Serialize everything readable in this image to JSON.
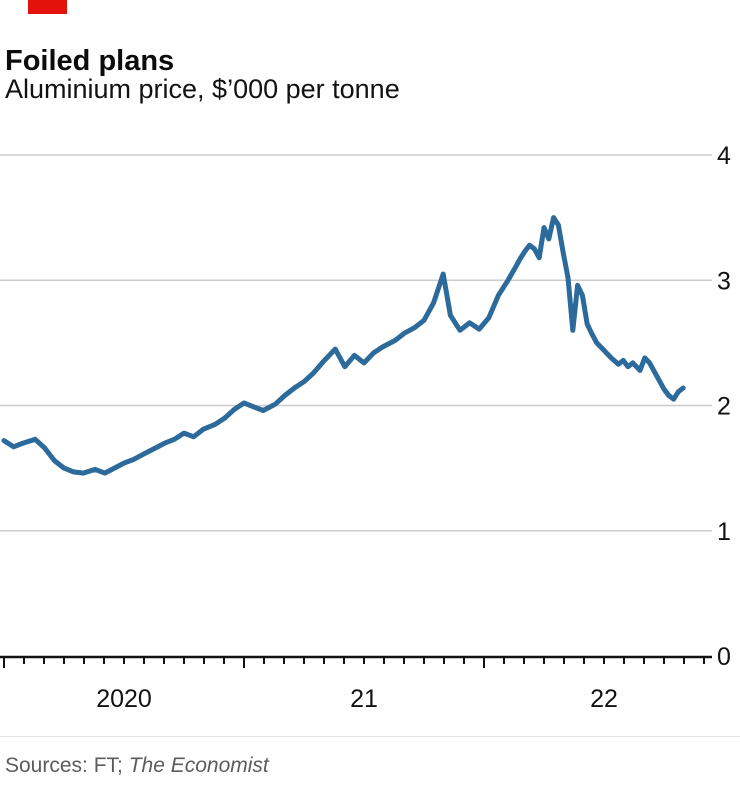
{
  "brand": {
    "red_tag_color": "#E3120B"
  },
  "header": {
    "title": "Foiled plans",
    "subtitle": "Aluminium price, $’000 per tonne"
  },
  "footer": {
    "source_prefix": "Sources: FT; ",
    "source_italic": "The Economist"
  },
  "chart_data": {
    "type": "line",
    "title": "Foiled plans",
    "subtitle": "Aluminium price, $'000 per tonne",
    "xlabel": "",
    "ylabel": "",
    "ylim": [
      0,
      4
    ],
    "yticks": [
      0,
      1,
      2,
      3,
      4
    ],
    "ytick_side": "right",
    "xlim": [
      2020.0,
      2022.95
    ],
    "x_minor_tick_interval_years": 0.083333,
    "x_year_labels": [
      {
        "label": "2020",
        "center": 2020.5
      },
      {
        "label": "21",
        "center": 2021.5
      },
      {
        "label": "22",
        "center": 2022.5
      }
    ],
    "grid": "horizontal",
    "grid_color": "#cccccc",
    "axis_color": "#121212",
    "line_color": "#2B6A9B",
    "series": [
      {
        "name": "Aluminium price, $'000 per tonne",
        "points": [
          [
            2020.0,
            1.72
          ],
          [
            2020.04,
            1.67
          ],
          [
            2020.08,
            1.7
          ],
          [
            2020.13,
            1.73
          ],
          [
            2020.17,
            1.66
          ],
          [
            2020.21,
            1.56
          ],
          [
            2020.25,
            1.5
          ],
          [
            2020.29,
            1.47
          ],
          [
            2020.33,
            1.46
          ],
          [
            2020.38,
            1.49
          ],
          [
            2020.42,
            1.46
          ],
          [
            2020.46,
            1.5
          ],
          [
            2020.5,
            1.54
          ],
          [
            2020.54,
            1.57
          ],
          [
            2020.58,
            1.61
          ],
          [
            2020.63,
            1.66
          ],
          [
            2020.67,
            1.7
          ],
          [
            2020.71,
            1.73
          ],
          [
            2020.75,
            1.78
          ],
          [
            2020.79,
            1.75
          ],
          [
            2020.83,
            1.81
          ],
          [
            2020.88,
            1.85
          ],
          [
            2020.92,
            1.9
          ],
          [
            2020.96,
            1.97
          ],
          [
            2021.0,
            2.02
          ],
          [
            2021.04,
            1.99
          ],
          [
            2021.08,
            1.96
          ],
          [
            2021.13,
            2.01
          ],
          [
            2021.17,
            2.08
          ],
          [
            2021.21,
            2.14
          ],
          [
            2021.25,
            2.19
          ],
          [
            2021.29,
            2.26
          ],
          [
            2021.33,
            2.35
          ],
          [
            2021.38,
            2.45
          ],
          [
            2021.42,
            2.31
          ],
          [
            2021.46,
            2.4
          ],
          [
            2021.5,
            2.34
          ],
          [
            2021.54,
            2.42
          ],
          [
            2021.58,
            2.47
          ],
          [
            2021.63,
            2.52
          ],
          [
            2021.67,
            2.58
          ],
          [
            2021.71,
            2.62
          ],
          [
            2021.75,
            2.68
          ],
          [
            2021.79,
            2.82
          ],
          [
            2021.83,
            3.05
          ],
          [
            2021.86,
            2.72
          ],
          [
            2021.9,
            2.6
          ],
          [
            2021.94,
            2.66
          ],
          [
            2021.98,
            2.61
          ],
          [
            2022.02,
            2.7
          ],
          [
            2022.06,
            2.88
          ],
          [
            2022.1,
            3.0
          ],
          [
            2022.13,
            3.1
          ],
          [
            2022.15,
            3.17
          ],
          [
            2022.17,
            3.23
          ],
          [
            2022.19,
            3.28
          ],
          [
            2022.21,
            3.25
          ],
          [
            2022.23,
            3.18
          ],
          [
            2022.25,
            3.42
          ],
          [
            2022.27,
            3.33
          ],
          [
            2022.29,
            3.5
          ],
          [
            2022.31,
            3.44
          ],
          [
            2022.33,
            3.22
          ],
          [
            2022.35,
            3.02
          ],
          [
            2022.37,
            2.6
          ],
          [
            2022.39,
            2.96
          ],
          [
            2022.41,
            2.88
          ],
          [
            2022.43,
            2.65
          ],
          [
            2022.45,
            2.57
          ],
          [
            2022.47,
            2.5
          ],
          [
            2022.5,
            2.44
          ],
          [
            2022.53,
            2.38
          ],
          [
            2022.56,
            2.33
          ],
          [
            2022.58,
            2.36
          ],
          [
            2022.6,
            2.31
          ],
          [
            2022.62,
            2.34
          ],
          [
            2022.65,
            2.28
          ],
          [
            2022.67,
            2.38
          ],
          [
            2022.69,
            2.34
          ],
          [
            2022.71,
            2.27
          ],
          [
            2022.73,
            2.2
          ],
          [
            2022.75,
            2.13
          ],
          [
            2022.77,
            2.08
          ],
          [
            2022.79,
            2.05
          ],
          [
            2022.81,
            2.11
          ],
          [
            2022.83,
            2.14
          ]
        ]
      }
    ]
  }
}
